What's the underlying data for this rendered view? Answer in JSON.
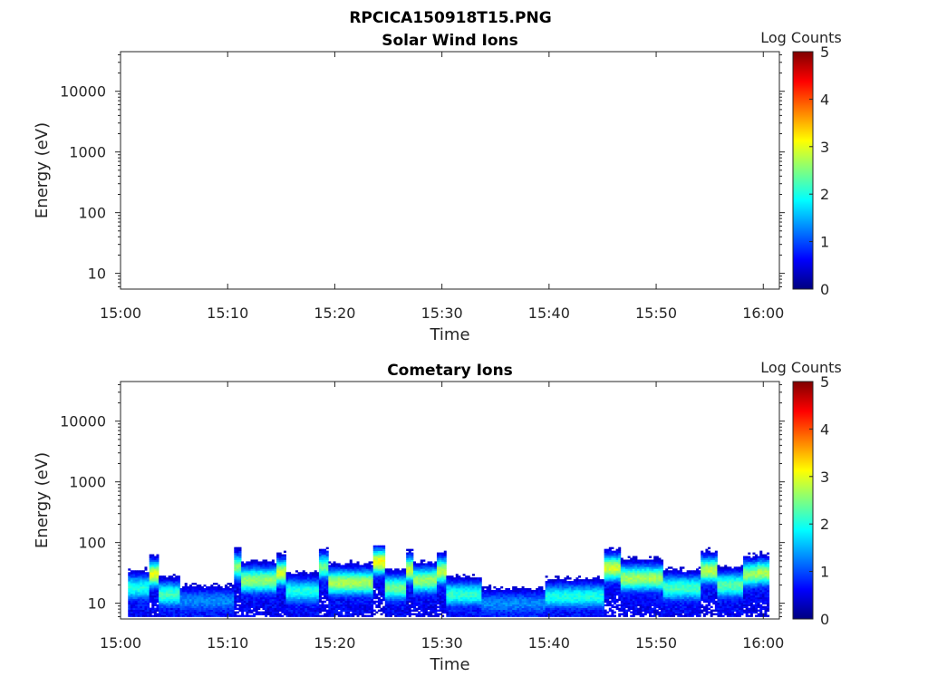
{
  "figure": {
    "title": "RPCICA150918T15.PNG"
  },
  "colormap": {
    "name": "jet",
    "stops": [
      "#00007f",
      "#0000ff",
      "#007fff",
      "#00ffff",
      "#7fff7f",
      "#ffff00",
      "#ff7f00",
      "#ff0000",
      "#7f0000"
    ]
  },
  "chart_data": [
    {
      "type": "heatmap",
      "title": "Solar Wind Ions",
      "xlabel": "Time",
      "ylabel": "Energy (eV)",
      "x_ticks": [
        "15:00",
        "15:10",
        "15:20",
        "15:30",
        "15:40",
        "15:50",
        "16:00"
      ],
      "x_range_minutes": [
        0,
        61.5
      ],
      "y_scale": "log",
      "y_ticks": [
        10,
        100,
        1000,
        10000
      ],
      "y_tick_labels": [
        "10",
        "100",
        "1000",
        "10000"
      ],
      "y_range": [
        5.5,
        45000
      ],
      "colorbar": {
        "label": "Log Counts",
        "range": [
          0,
          5
        ],
        "ticks": [
          "0",
          "1",
          "2",
          "3",
          "4",
          "5"
        ]
      },
      "data_present": false,
      "bands": []
    },
    {
      "type": "heatmap",
      "title": "Cometary Ions",
      "xlabel": "Time",
      "ylabel": "Energy (eV)",
      "x_ticks": [
        "15:00",
        "15:10",
        "15:20",
        "15:30",
        "15:40",
        "15:50",
        "16:00"
      ],
      "x_range_minutes": [
        0,
        61.5
      ],
      "y_scale": "log",
      "y_ticks": [
        10,
        100,
        1000,
        10000
      ],
      "y_tick_labels": [
        "10",
        "100",
        "1000",
        "10000"
      ],
      "y_range": [
        5.5,
        45000
      ],
      "colorbar": {
        "label": "Log Counts",
        "range": [
          0,
          5
        ],
        "ticks": [
          "0",
          "1",
          "2",
          "3",
          "4",
          "5"
        ]
      },
      "data_present": true,
      "time_coverage_minutes": [
        0.7,
        60.4
      ],
      "energy_floor_eV": 6,
      "bands": [
        {
          "t0": 0.7,
          "t1": 2.5,
          "peak_eV": 18,
          "max_log_counts": 2.0
        },
        {
          "t0": 2.5,
          "t1": 3.5,
          "peak_eV": 30,
          "max_log_counts": 3.0
        },
        {
          "t0": 3.5,
          "t1": 5.5,
          "peak_eV": 14,
          "max_log_counts": 2.2
        },
        {
          "t0": 5.5,
          "t1": 10.5,
          "peak_eV": 11,
          "max_log_counts": 1.3
        },
        {
          "t0": 10.5,
          "t1": 11.2,
          "peak_eV": 40,
          "max_log_counts": 2.5
        },
        {
          "t0": 11.2,
          "t1": 14.5,
          "peak_eV": 24,
          "max_log_counts": 2.6
        },
        {
          "t0": 14.5,
          "t1": 15.3,
          "peak_eV": 32,
          "max_log_counts": 2.9
        },
        {
          "t0": 15.3,
          "t1": 18.5,
          "peak_eV": 16,
          "max_log_counts": 2.0
        },
        {
          "t0": 18.5,
          "t1": 19.2,
          "peak_eV": 40,
          "max_log_counts": 2.4
        },
        {
          "t0": 19.2,
          "t1": 23.5,
          "peak_eV": 22,
          "max_log_counts": 2.7
        },
        {
          "t0": 23.5,
          "t1": 24.5,
          "peak_eV": 48,
          "max_log_counts": 3.1
        },
        {
          "t0": 24.5,
          "t1": 26.5,
          "peak_eV": 18,
          "max_log_counts": 2.4
        },
        {
          "t0": 26.5,
          "t1": 27.3,
          "peak_eV": 36,
          "max_log_counts": 2.9
        },
        {
          "t0": 27.3,
          "t1": 29.5,
          "peak_eV": 24,
          "max_log_counts": 2.6
        },
        {
          "t0": 29.5,
          "t1": 30.3,
          "peak_eV": 34,
          "max_log_counts": 2.8
        },
        {
          "t0": 30.3,
          "t1": 33.5,
          "peak_eV": 14,
          "max_log_counts": 2.1
        },
        {
          "t0": 33.5,
          "t1": 39.5,
          "peak_eV": 10,
          "max_log_counts": 1.3
        },
        {
          "t0": 39.5,
          "t1": 45.0,
          "peak_eV": 13,
          "max_log_counts": 2.0
        },
        {
          "t0": 45.0,
          "t1": 46.5,
          "peak_eV": 38,
          "max_log_counts": 2.9
        },
        {
          "t0": 46.5,
          "t1": 50.5,
          "peak_eV": 26,
          "max_log_counts": 2.7
        },
        {
          "t0": 50.5,
          "t1": 54.0,
          "peak_eV": 18,
          "max_log_counts": 2.2
        },
        {
          "t0": 54.0,
          "t1": 55.5,
          "peak_eV": 35,
          "max_log_counts": 2.8
        },
        {
          "t0": 55.5,
          "t1": 58.0,
          "peak_eV": 20,
          "max_log_counts": 2.3
        },
        {
          "t0": 58.0,
          "t1": 59.3,
          "peak_eV": 30,
          "max_log_counts": 2.6
        },
        {
          "t0": 59.3,
          "t1": 60.4,
          "peak_eV": 32,
          "max_log_counts": 2.7
        }
      ]
    }
  ]
}
